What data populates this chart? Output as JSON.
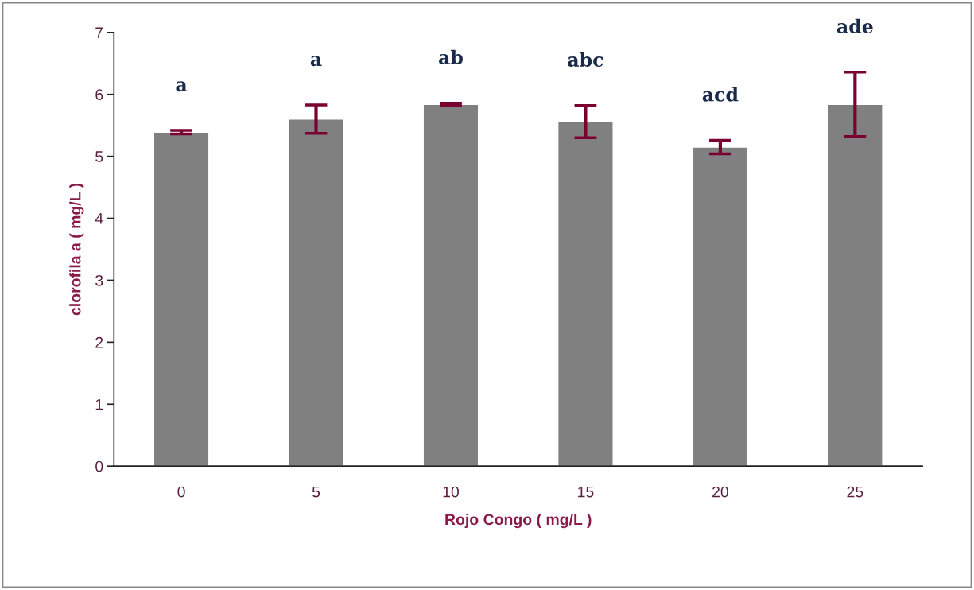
{
  "chart_data": {
    "type": "bar",
    "xlabel": "Rojo Congo ( mg/L )",
    "ylabel": "clorofila a ( mg/L )",
    "categories": [
      "0",
      "5",
      "10",
      "15",
      "20",
      "25"
    ],
    "values": [
      5.39,
      5.6,
      5.84,
      5.56,
      5.15,
      5.84
    ],
    "errors": [
      0.03,
      0.23,
      0.02,
      0.26,
      0.11,
      0.52
    ],
    "color": "#808080",
    "ylim": [
      0,
      7
    ],
    "yticks": [
      0,
      1,
      2,
      3,
      4,
      5,
      6,
      7
    ],
    "grid": false,
    "legend": false,
    "annotations": [
      "a",
      "a",
      "ab",
      "abc",
      "acd",
      "ade"
    ]
  }
}
